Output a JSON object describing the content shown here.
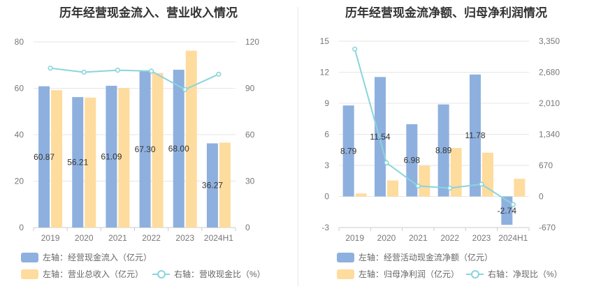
{
  "chart_data": [
    {
      "type": "bar",
      "title": "历年经营现金流入、营业收入情况",
      "categories": [
        "2019",
        "2020",
        "2021",
        "2022",
        "2023",
        "2024H1"
      ],
      "left_axis": {
        "ylim": [
          0,
          80
        ],
        "ticks": [
          0,
          20,
          40,
          60,
          80
        ]
      },
      "right_axis": {
        "ylim": [
          0,
          120
        ],
        "ticks": [
          0,
          30,
          60,
          90,
          120
        ]
      },
      "series": [
        {
          "name": "左轴：经营现金流入（亿元）",
          "kind": "bar",
          "axis": "left",
          "color": "#8eb0de",
          "values": [
            60.87,
            56.21,
            61.09,
            67.3,
            68.0,
            36.27
          ],
          "labels": [
            "60.87",
            "56.21",
            "61.09",
            "67.30",
            "68.00",
            "36.27"
          ]
        },
        {
          "name": "左轴：营业总收入（亿元）",
          "kind": "bar",
          "axis": "left",
          "color": "#fedc9e",
          "values": [
            59.2,
            56.0,
            60.1,
            66.6,
            76.2,
            36.6
          ]
        },
        {
          "name": "右轴：营收现金比（%）",
          "kind": "line",
          "axis": "right",
          "color": "#8ad4dc",
          "values": [
            103,
            100.4,
            101.7,
            101.1,
            89.2,
            99.1
          ]
        }
      ]
    },
    {
      "type": "bar",
      "title": "历年经营现金流净额、归母净利润情况",
      "categories": [
        "2019",
        "2020",
        "2021",
        "2022",
        "2023",
        "2024H1"
      ],
      "left_axis": {
        "ylim": [
          -3,
          15
        ],
        "ticks": [
          -3,
          0,
          3,
          6,
          9,
          12,
          15
        ]
      },
      "right_axis": {
        "ylim": [
          -670,
          3350
        ],
        "ticks": [
          -670,
          0,
          670,
          1340,
          2010,
          2680,
          3350
        ],
        "tick_labels": [
          "-670",
          "0",
          "670",
          "1,340",
          "2,010",
          "2,680",
          "3,350"
        ]
      },
      "series": [
        {
          "name": "左轴：经营活动现金流净额（亿元）",
          "kind": "bar",
          "axis": "left",
          "color": "#8eb0de",
          "values": [
            8.79,
            11.54,
            6.98,
            8.89,
            11.78,
            -2.74
          ],
          "labels": [
            "8.79",
            "11.54",
            "6.98",
            "8.89",
            "11.78",
            "-2.74"
          ]
        },
        {
          "name": "左轴：归母净利润（亿元）",
          "kind": "bar",
          "axis": "left",
          "color": "#fedc9e",
          "values": [
            0.29,
            1.55,
            2.98,
            4.68,
            4.23,
            1.71
          ]
        },
        {
          "name": "右轴：净现比（%）",
          "kind": "line",
          "axis": "right",
          "color": "#8ad4dc",
          "values": [
            3180,
            728,
            225,
            180,
            265,
            -173
          ]
        }
      ]
    }
  ]
}
